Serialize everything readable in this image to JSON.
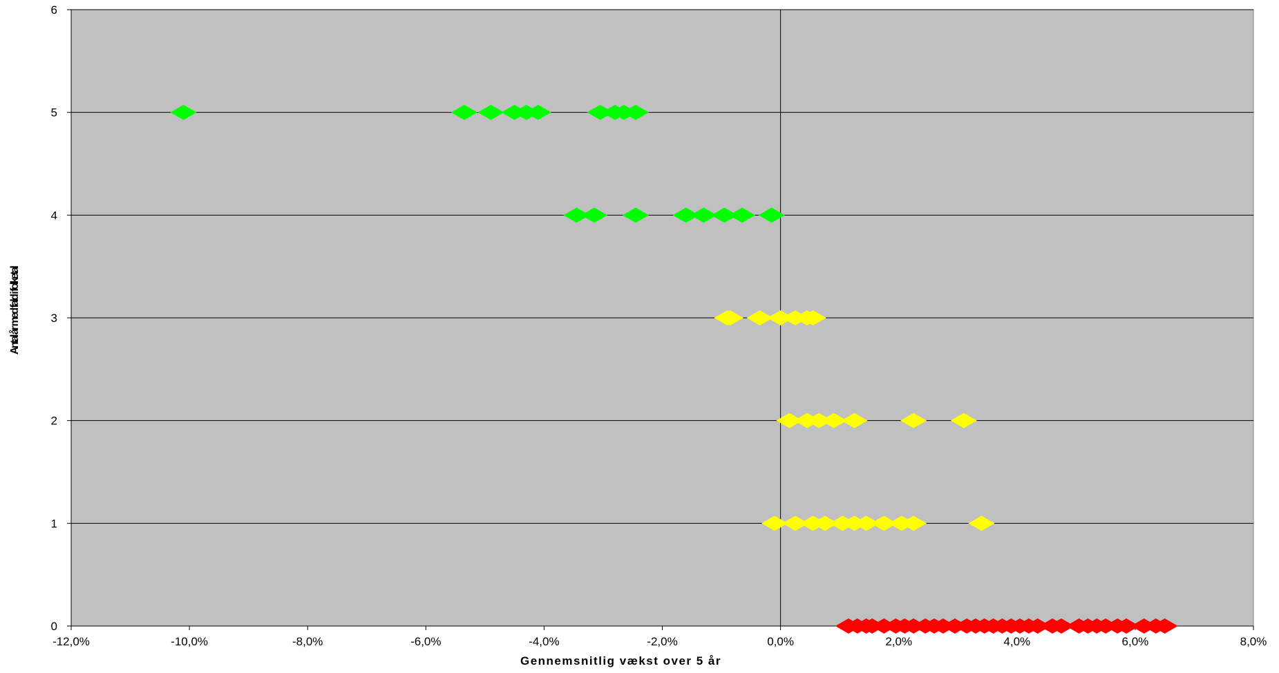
{
  "chart_data": {
    "type": "scatter",
    "xlabel": "Gennemsnitlig vækst over 5 år",
    "ylabel": "Antal år med fald i folketal",
    "xlim": [
      -0.12,
      0.08
    ],
    "ylim": [
      0,
      6
    ],
    "x_tick_labels": [
      "-12,0%",
      "-10,0%",
      "-8,0%",
      "-6,0%",
      "-4,0%",
      "-2,0%",
      "0,0%",
      "2,0%",
      "4,0%",
      "6,0%",
      "8,0%"
    ],
    "y_tick_labels": [
      "0",
      "1",
      "2",
      "3",
      "4",
      "5",
      "6"
    ],
    "grid": "horizontal",
    "plot_background": "#C0C0C0",
    "marker": "diamond",
    "series": [
      {
        "color": "#FF0000",
        "points": [
          [
            0.0115,
            0
          ],
          [
            0.013,
            0
          ],
          [
            0.0145,
            0
          ],
          [
            0.0155,
            0
          ],
          [
            0.0175,
            0
          ],
          [
            0.0195,
            0
          ],
          [
            0.021,
            0
          ],
          [
            0.0225,
            0
          ],
          [
            0.0245,
            0
          ],
          [
            0.026,
            0
          ],
          [
            0.0275,
            0
          ],
          [
            0.0295,
            0
          ],
          [
            0.0315,
            0
          ],
          [
            0.033,
            0
          ],
          [
            0.0345,
            0
          ],
          [
            0.036,
            0
          ],
          [
            0.0375,
            0
          ],
          [
            0.039,
            0
          ],
          [
            0.0405,
            0
          ],
          [
            0.042,
            0
          ],
          [
            0.0435,
            0
          ],
          [
            0.046,
            0
          ],
          [
            0.0475,
            0
          ],
          [
            0.0505,
            0
          ],
          [
            0.052,
            0
          ],
          [
            0.0535,
            0
          ],
          [
            0.055,
            0
          ],
          [
            0.057,
            0
          ],
          [
            0.0585,
            0
          ],
          [
            0.0615,
            0
          ],
          [
            0.0635,
            0
          ],
          [
            0.065,
            0
          ]
        ]
      },
      {
        "color": "#FFFF00",
        "points": [
          [
            -0.001,
            1
          ],
          [
            0.0025,
            1
          ],
          [
            0.0055,
            1
          ],
          [
            0.0075,
            1
          ],
          [
            0.0105,
            1
          ],
          [
            0.0125,
            1
          ],
          [
            0.0145,
            1
          ],
          [
            0.0175,
            1
          ],
          [
            0.0205,
            1
          ],
          [
            0.0225,
            1
          ],
          [
            0.034,
            1
          ],
          [
            0.0015,
            2
          ],
          [
            0.0045,
            2
          ],
          [
            0.0065,
            2
          ],
          [
            0.009,
            2
          ],
          [
            0.0125,
            2
          ],
          [
            0.0225,
            2
          ],
          [
            0.031,
            2
          ],
          [
            -0.009,
            3
          ],
          [
            -0.0085,
            3
          ],
          [
            -0.0035,
            3
          ],
          [
            0.0,
            3
          ],
          [
            0.0025,
            3
          ],
          [
            0.0045,
            3
          ],
          [
            0.0055,
            3
          ]
        ]
      },
      {
        "color": "#00FF00",
        "points": [
          [
            -0.0345,
            4
          ],
          [
            -0.0315,
            4
          ],
          [
            -0.0245,
            4
          ],
          [
            -0.016,
            4
          ],
          [
            -0.013,
            4
          ],
          [
            -0.0095,
            4
          ],
          [
            -0.0065,
            4
          ],
          [
            -0.0015,
            4
          ],
          [
            -0.101,
            5
          ],
          [
            -0.0535,
            5
          ],
          [
            -0.049,
            5
          ],
          [
            -0.045,
            5
          ],
          [
            -0.043,
            5
          ],
          [
            -0.041,
            5
          ],
          [
            -0.0305,
            5
          ],
          [
            -0.028,
            5
          ],
          [
            -0.0265,
            5
          ],
          [
            -0.0245,
            5
          ]
        ]
      }
    ]
  }
}
